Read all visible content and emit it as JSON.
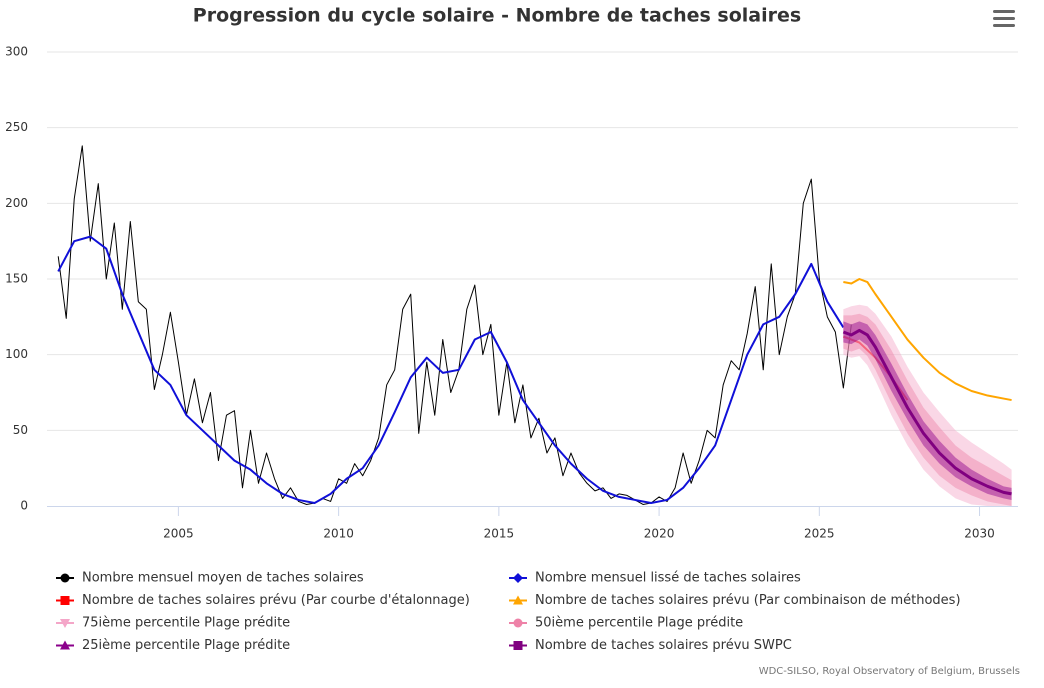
{
  "chart_data": {
    "type": "line",
    "title": "Progression du cycle solaire - Nombre de taches solaires",
    "credit": "WDC-SILSO, Royal Observatory of Belgium, Brussels",
    "xlim": [
      2000.9,
      2031.2
    ],
    "xticks": [
      2005,
      2010,
      2015,
      2020,
      2025,
      2030
    ],
    "ylim": [
      0,
      300
    ],
    "yticks": [
      0,
      50,
      100,
      150,
      200,
      250,
      300
    ],
    "grid": true,
    "series": [
      {
        "name": "Nombre mensuel moyen de taches solaires",
        "type": "line",
        "marker": "circle",
        "color": "#000000",
        "width": 1,
        "x": [
          2001.25,
          2001.5,
          2001.75,
          2002.0,
          2002.25,
          2002.5,
          2002.75,
          2003.0,
          2003.25,
          2003.5,
          2003.75,
          2004.0,
          2004.25,
          2004.5,
          2004.75,
          2005.0,
          2005.25,
          2005.5,
          2005.75,
          2006.0,
          2006.25,
          2006.5,
          2006.75,
          2007.0,
          2007.25,
          2007.5,
          2007.75,
          2008.0,
          2008.25,
          2008.5,
          2008.75,
          2009.0,
          2009.25,
          2009.5,
          2009.75,
          2010.0,
          2010.25,
          2010.5,
          2010.75,
          2011.0,
          2011.25,
          2011.5,
          2011.75,
          2012.0,
          2012.25,
          2012.5,
          2012.75,
          2013.0,
          2013.25,
          2013.5,
          2013.75,
          2014.0,
          2014.25,
          2014.5,
          2014.75,
          2015.0,
          2015.25,
          2015.5,
          2015.75,
          2016.0,
          2016.25,
          2016.5,
          2016.75,
          2017.0,
          2017.25,
          2017.5,
          2017.75,
          2018.0,
          2018.25,
          2018.5,
          2018.75,
          2019.0,
          2019.25,
          2019.5,
          2019.75,
          2020.0,
          2020.25,
          2020.5,
          2020.75,
          2021.0,
          2021.25,
          2021.5,
          2021.75,
          2022.0,
          2022.25,
          2022.5,
          2022.75,
          2023.0,
          2023.25,
          2023.5,
          2023.75,
          2024.0,
          2024.25,
          2024.5,
          2024.75,
          2025.0,
          2025.25,
          2025.5,
          2025.75,
          2026.0
        ],
        "values": [
          165,
          124,
          203,
          238,
          175,
          213,
          150,
          187,
          130,
          188,
          135,
          130,
          77,
          100,
          128,
          95,
          60,
          84,
          55,
          75,
          30,
          60,
          63,
          12,
          50,
          15,
          35,
          18,
          5,
          12,
          3,
          1,
          2,
          5,
          3,
          18,
          15,
          28,
          20,
          30,
          45,
          80,
          90,
          130,
          140,
          48,
          95,
          60,
          110,
          75,
          90,
          130,
          146,
          100,
          120,
          60,
          95,
          55,
          80,
          45,
          58,
          35,
          45,
          20,
          35,
          22,
          15,
          10,
          12,
          5,
          8,
          7,
          4,
          1,
          2,
          6,
          3,
          12,
          35,
          15,
          30,
          50,
          45,
          80,
          96,
          90,
          114,
          145,
          90,
          160,
          100,
          125,
          140,
          200,
          216,
          150,
          125,
          115,
          78,
          120
        ]
      },
      {
        "name": "Nombre mensuel lissé de taches solaires",
        "type": "line",
        "marker": "diamond",
        "color": "#1010d8",
        "width": 2,
        "x": [
          2001.25,
          2001.75,
          2002.25,
          2002.75,
          2003.25,
          2003.75,
          2004.25,
          2004.75,
          2005.25,
          2005.75,
          2006.25,
          2006.75,
          2007.25,
          2007.75,
          2008.25,
          2008.75,
          2009.25,
          2009.75,
          2010.25,
          2010.75,
          2011.25,
          2011.75,
          2012.25,
          2012.75,
          2013.25,
          2013.75,
          2014.25,
          2014.75,
          2015.25,
          2015.75,
          2016.25,
          2016.75,
          2017.25,
          2017.75,
          2018.25,
          2018.75,
          2019.25,
          2019.75,
          2020.25,
          2020.75,
          2021.25,
          2021.75,
          2022.25,
          2022.75,
          2023.25,
          2023.75,
          2024.25,
          2024.75,
          2025.25,
          2025.75
        ],
        "values": [
          155,
          175,
          178,
          170,
          140,
          115,
          90,
          80,
          60,
          50,
          40,
          30,
          24,
          15,
          8,
          4,
          2,
          8,
          18,
          25,
          40,
          62,
          85,
          98,
          88,
          90,
          110,
          115,
          95,
          70,
          55,
          40,
          28,
          18,
          10,
          6,
          4,
          2,
          4,
          12,
          25,
          40,
          70,
          100,
          120,
          125,
          140,
          160,
          135,
          118
        ]
      },
      {
        "name": "Nombre de taches solaires prévu (Par courbe d'étalonnage)",
        "type": "line",
        "marker": "square",
        "color": "#ff0000",
        "width": 2,
        "x": [
          2025.75,
          2026.25,
          2026.75,
          2027.25,
          2027.75
        ],
        "values": [
          112,
          108,
          98,
          85,
          70
        ]
      },
      {
        "name": "Nombre de taches solaires prévu (Par combinaison de méthodes)",
        "type": "line",
        "marker": "triangle",
        "color": "#ffa500",
        "width": 2,
        "x": [
          2025.75,
          2026.0,
          2026.25,
          2026.5,
          2026.75,
          2027.25,
          2027.75,
          2028.25,
          2028.75,
          2029.25,
          2029.75,
          2030.25,
          2030.75,
          2031.0
        ],
        "values": [
          148,
          147,
          150,
          148,
          140,
          125,
          110,
          98,
          88,
          81,
          76,
          73,
          71,
          70
        ]
      },
      {
        "name": "75ième percentile Plage prédite",
        "type": "arearange",
        "marker": "triangle-down",
        "color": "#f4a6c8",
        "x": [
          2025.75,
          2026.0,
          2026.25,
          2026.5,
          2026.75,
          2027.25,
          2027.75,
          2028.25,
          2028.75,
          2029.25,
          2029.75,
          2030.25,
          2030.75,
          2031.0
        ],
        "low": [
          100,
          98,
          99,
          93,
          83,
          60,
          40,
          24,
          13,
          5,
          1,
          0,
          0,
          0
        ],
        "high": [
          130,
          132,
          133,
          132,
          127,
          112,
          92,
          75,
          62,
          50,
          42,
          35,
          28,
          24
        ]
      },
      {
        "name": "50ième percentile Plage prédite",
        "type": "arearange",
        "marker": "circle",
        "color": "#ee82a8",
        "x": [
          2025.75,
          2026.0,
          2026.25,
          2026.5,
          2026.75,
          2027.25,
          2027.75,
          2028.25,
          2028.75,
          2029.25,
          2029.75,
          2030.25,
          2030.75,
          2031.0
        ],
        "low": [
          104,
          102,
          104,
          99,
          90,
          68,
          48,
          32,
          20,
          12,
          7,
          3,
          1,
          0
        ],
        "high": [
          126,
          126,
          127,
          125,
          120,
          103,
          83,
          65,
          52,
          40,
          32,
          26,
          20,
          17
        ]
      },
      {
        "name": "25ième percentile Plage prédite",
        "type": "arearange",
        "marker": "triangle",
        "color": "#8b008b",
        "x": [
          2025.75,
          2026.0,
          2026.25,
          2026.5,
          2026.75,
          2027.25,
          2027.75,
          2028.25,
          2028.75,
          2029.25,
          2029.75,
          2030.25,
          2030.75,
          2031.0
        ],
        "low": [
          108,
          107,
          110,
          106,
          97,
          76,
          57,
          40,
          28,
          19,
          13,
          8,
          5,
          4
        ],
        "high": [
          122,
          120,
          122,
          120,
          113,
          94,
          74,
          56,
          43,
          32,
          24,
          18,
          13,
          12
        ]
      },
      {
        "name": "Nombre de taches solaires prévu SWPC",
        "type": "line",
        "marker": "square",
        "color": "#800080",
        "width": 3,
        "x": [
          2025.75,
          2026.0,
          2026.25,
          2026.5,
          2026.75,
          2027.25,
          2027.75,
          2028.25,
          2028.75,
          2029.25,
          2029.75,
          2030.25,
          2030.75,
          2031.0
        ],
        "values": [
          115,
          113,
          116,
          113,
          105,
          85,
          65,
          48,
          35,
          25,
          18,
          13,
          9,
          8
        ]
      }
    ]
  }
}
